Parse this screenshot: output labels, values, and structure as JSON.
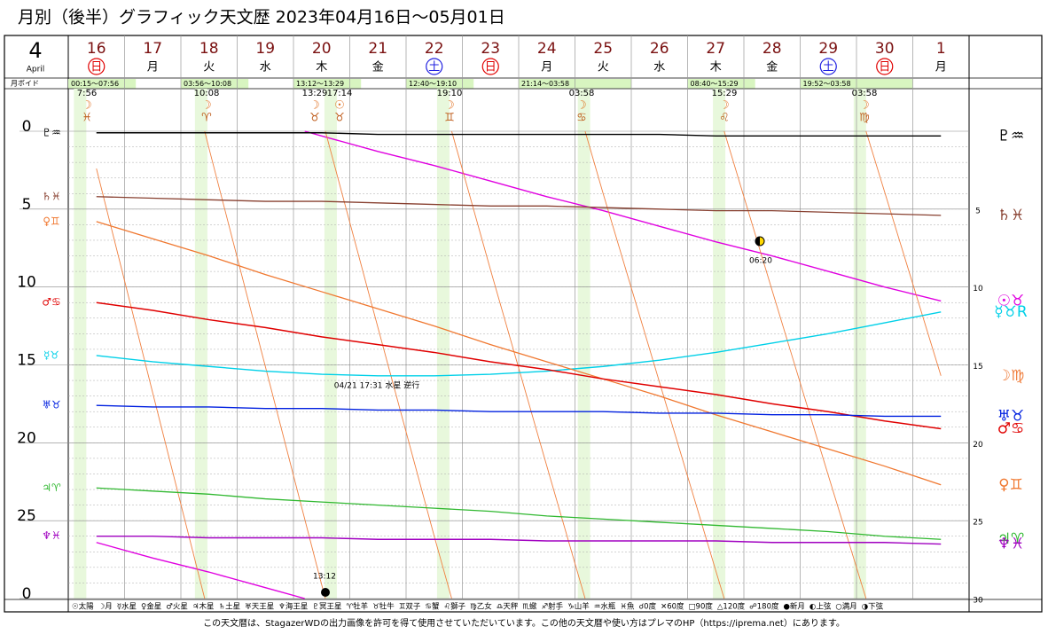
{
  "chart_data": {
    "type": "line",
    "title": "月別（後半）グラフィック天文歴  2023年04月16日～05月01日",
    "month": "4",
    "month_name": "April",
    "categories": [
      "16",
      "17",
      "18",
      "19",
      "20",
      "21",
      "22",
      "23",
      "24",
      "25",
      "26",
      "27",
      "28",
      "29",
      "30",
      "1"
    ],
    "weekdays": [
      "日",
      "月",
      "火",
      "水",
      "木",
      "金",
      "土",
      "日",
      "月",
      "火",
      "水",
      "木",
      "金",
      "土",
      "日",
      "月"
    ],
    "weekday_colors": [
      "#e00000",
      null,
      null,
      null,
      null,
      null,
      "#2020e0",
      "#e00000",
      null,
      null,
      null,
      null,
      null,
      "#2020e0",
      "#e00000",
      null
    ],
    "void_label": "月ボイド",
    "voids": [
      "00:15～07:56",
      "03:56～10:08",
      "13:12～13:29",
      "12:40～19:10",
      "21:14～03:58",
      "08:40～15:29",
      "19:52～03:58"
    ],
    "ylim": [
      0,
      30
    ],
    "yticks": [
      0,
      5,
      10,
      15,
      20,
      25,
      {
        "value": 30,
        "label": "0"
      }
    ],
    "y2ticks": [
      5,
      10,
      15,
      20,
      25,
      30
    ],
    "grid": true,
    "series": [
      {
        "name": "☉太陽",
        "color": "#e000e0",
        "width": 1.4,
        "end_label": "☉♉",
        "values": [
          26.4,
          27.4,
          28.3,
          29.3,
          0.3,
          1.3,
          2.2,
          3.2,
          4.2,
          5.1,
          6.1,
          7.1,
          8.0,
          9.0,
          10.0,
          10.9
        ]
      },
      {
        "name": "☽月",
        "color": "#f08040",
        "width": 0.9,
        "end_label": "☽♍",
        "values": [
          2.4,
          16.8,
          1.1,
          15.1,
          29.1,
          12.6,
          26.0,
          8.9,
          21.5,
          4.0,
          16.1,
          28.2,
          10.2,
          22.1,
          3.9,
          15.7
        ]
      },
      {
        "name": "☿水星",
        "color": "#00d0e8",
        "width": 1.4,
        "start_label": "☿♉",
        "end_label": "☿♉R",
        "values": [
          14.4,
          14.8,
          15.1,
          15.4,
          15.6,
          15.7,
          15.7,
          15.6,
          15.4,
          15.1,
          14.7,
          14.2,
          13.6,
          13.0,
          12.3,
          11.6
        ]
      },
      {
        "name": "♀金星",
        "color": "#f07830",
        "width": 1.3,
        "start_label": "♀♊",
        "end_label": "♀♊",
        "values": [
          5.8,
          6.9,
          8.0,
          9.2,
          10.3,
          11.4,
          12.5,
          13.7,
          14.8,
          15.9,
          17.0,
          18.2,
          19.3,
          20.4,
          21.5,
          22.7
        ]
      },
      {
        "name": "♂火星",
        "color": "#e00000",
        "width": 1.5,
        "start_label": "♂♋",
        "end_label": "♂♋",
        "values": [
          11.0,
          11.5,
          12.1,
          12.6,
          13.2,
          13.7,
          14.2,
          14.8,
          15.3,
          15.9,
          16.4,
          16.9,
          17.5,
          18.0,
          18.6,
          19.1
        ]
      },
      {
        "name": "♃木星",
        "color": "#30b830",
        "width": 1.3,
        "start_label": "♃♈",
        "end_label": "♃♈",
        "values": [
          22.9,
          23.1,
          23.3,
          23.6,
          23.8,
          24.0,
          24.2,
          24.4,
          24.7,
          24.9,
          25.1,
          25.3,
          25.5,
          25.7,
          26.0,
          26.2
        ]
      },
      {
        "name": "♄土星",
        "color": "#884030",
        "width": 1.3,
        "start_label": "♄♓",
        "end_label": "♄♓",
        "values": [
          4.2,
          4.3,
          4.4,
          4.5,
          4.5,
          4.6,
          4.7,
          4.8,
          4.8,
          4.9,
          5.0,
          5.1,
          5.1,
          5.2,
          5.3,
          5.4
        ]
      },
      {
        "name": "♅天王星",
        "color": "#0020e0",
        "width": 1.4,
        "start_label": "♅♉",
        "end_label": "♅♉",
        "values": [
          17.6,
          17.7,
          17.7,
          17.8,
          17.8,
          17.9,
          17.9,
          18.0,
          18.0,
          18.0,
          18.1,
          18.1,
          18.2,
          18.2,
          18.3,
          18.3
        ]
      },
      {
        "name": "♆海王星",
        "color": "#a000c0",
        "width": 1.4,
        "start_label": "♆♓",
        "end_label": "♆♓",
        "values": [
          26.0,
          26.0,
          26.1,
          26.1,
          26.1,
          26.2,
          26.2,
          26.2,
          26.3,
          26.3,
          26.3,
          26.3,
          26.4,
          26.4,
          26.4,
          26.5
        ]
      },
      {
        "name": "♇冥王星",
        "color": "#000000",
        "width": 1.4,
        "start_label": "♇♒",
        "end_label": "♇♒",
        "values": [
          0.1,
          0.1,
          0.1,
          0.1,
          0.1,
          0.2,
          0.2,
          0.2,
          0.2,
          0.2,
          0.2,
          0.3,
          0.3,
          0.3,
          0.3,
          0.3
        ]
      }
    ],
    "ingress": [
      {
        "time": "7:56",
        "planet": "☽",
        "sign": "♓"
      },
      {
        "time": "10:08",
        "planet": "☽",
        "sign": "♈"
      },
      {
        "time": "13:29",
        "planet": "☽",
        "sign": "♉"
      },
      {
        "time": "17:14",
        "planet": "☉",
        "sign": "♉"
      },
      {
        "time": "19:10",
        "planet": "☽",
        "sign": "♊"
      },
      {
        "time": "03:58",
        "planet": "☽",
        "sign": "♋"
      },
      {
        "time": "15:29",
        "planet": "☽",
        "sign": "♌"
      },
      {
        "time": "03:58",
        "planet": "☽",
        "sign": "♍"
      }
    ],
    "annotations": [
      "06:20",
      "04/21 17:31 水星 逆行",
      "13:12"
    ],
    "legend_extra": [
      "♈牡羊",
      "♉牡牛",
      "♊双子",
      "♋蟹",
      "♌獅子",
      "♍乙女",
      "♎天秤",
      "♏蠍",
      "♐射手",
      "♑山羊",
      "♒水瓶",
      "♓魚",
      "☌0度",
      "✕60度",
      "□90度",
      "△120度",
      "☍180度",
      "●新月",
      "◐上弦",
      "○満月",
      "◑下弦"
    ],
    "footer": "この天文暦は、StagazerWDの出力画像を許可を得て使用させていただいています。この他の天文暦や使い方はプレマのHP（https://iprema.net）にあります。"
  }
}
